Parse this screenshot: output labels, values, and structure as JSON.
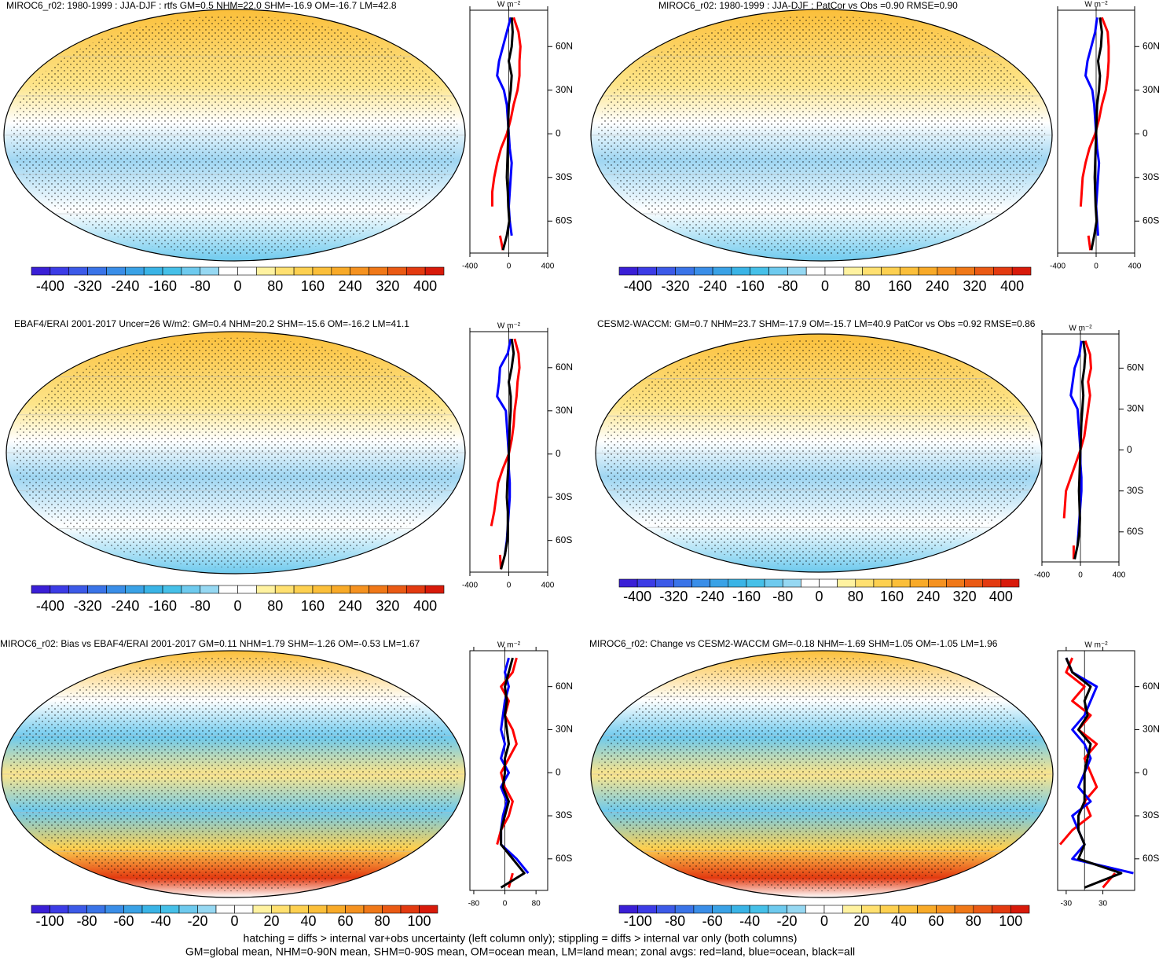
{
  "chart_data": [
    {
      "type": "map",
      "title": "MIROC6_r02: 1980-1999 : JJA-DJF : rtfs GM=0.5 NHM=22.0 SHM=-16.9 OM=-16.7 LM=42.8",
      "colorbar": {
        "lim": [
          -440,
          440
        ],
        "ticks": [
          -400,
          -320,
          -240,
          -160,
          -80,
          0,
          80,
          160,
          240,
          320,
          400
        ]
      },
      "zonal": {
        "type": "line",
        "unit_label": "W m⁻²",
        "lat": [
          -80,
          -70,
          -60,
          -50,
          -40,
          -30,
          -20,
          -10,
          0,
          10,
          20,
          30,
          40,
          50,
          60,
          70,
          80
        ],
        "latlim": [
          -82,
          85
        ],
        "latticks": [
          {
            "value": 60,
            "label": "60N"
          },
          {
            "value": 30,
            "label": "30N"
          },
          0,
          {
            "value": -30,
            "label": "30S"
          },
          {
            "value": -60,
            "label": "60S"
          }
        ],
        "vlim": [
          -400,
          400
        ],
        "vticks": [
          -400,
          0,
          400
        ],
        "series": [
          {
            "name": "land",
            "color": "#ff0000",
            "values": [
              -60,
              -90,
              null,
              -170,
              -170,
              -150,
              -120,
              -80,
              -20,
              20,
              50,
              90,
              110,
              110,
              120,
              100,
              50
            ]
          },
          {
            "name": "ocean",
            "color": "#0000ff",
            "values": [
              null,
              30,
              10,
              0,
              10,
              20,
              30,
              10,
              0,
              -10,
              -20,
              -50,
              -120,
              -100,
              -60,
              -20,
              20
            ]
          },
          {
            "name": "all",
            "color": "#000000",
            "values": [
              -60,
              -20,
              5,
              -5,
              -10,
              -20,
              -15,
              -10,
              -5,
              -5,
              0,
              20,
              30,
              0,
              30,
              40,
              30
            ]
          }
        ]
      }
    },
    {
      "type": "map",
      "title": "MIROC6_r02: 1980-1999 : JJA-DJF : PatCor vs Obs =0.90 RMSE=0.90",
      "colorbar": {
        "lim": [
          -440,
          440
        ],
        "ticks": [
          -400,
          -320,
          -240,
          -160,
          -80,
          0,
          80,
          160,
          240,
          320,
          400
        ]
      },
      "zonal": {
        "type": "line",
        "unit_label": "W m⁻²",
        "lat": [
          -80,
          -70,
          -60,
          -50,
          -40,
          -30,
          -20,
          -10,
          0,
          10,
          20,
          30,
          40,
          50,
          60,
          70,
          80
        ],
        "latlim": [
          -82,
          85
        ],
        "latticks": [
          {
            "value": 60,
            "label": "60N"
          },
          {
            "value": 30,
            "label": "30N"
          },
          0,
          {
            "value": -30,
            "label": "30S"
          },
          {
            "value": -60,
            "label": "60S"
          }
        ],
        "vlim": [
          -400,
          400
        ],
        "vticks": [
          -400,
          0,
          400
        ],
        "series": [
          {
            "name": "land",
            "color": "#ff0000",
            "values": [
              -60,
              -80,
              null,
              -160,
              -150,
              -140,
              -110,
              -70,
              -10,
              30,
              60,
              100,
              120,
              130,
              130,
              120,
              60
            ]
          },
          {
            "name": "ocean",
            "color": "#0000ff",
            "values": [
              null,
              20,
              10,
              0,
              10,
              20,
              30,
              10,
              0,
              -10,
              -20,
              -40,
              -110,
              -90,
              -50,
              -10,
              10
            ]
          },
          {
            "name": "all",
            "color": "#000000",
            "values": [
              -50,
              -20,
              5,
              -5,
              -10,
              -15,
              -10,
              -5,
              0,
              5,
              10,
              30,
              40,
              20,
              50,
              60,
              40
            ]
          }
        ]
      }
    },
    {
      "type": "map",
      "title": "EBAF4/ERAI 2001-2017 Uncer=26 W/m2: GM=0.4 NHM=20.2 SHM=-15.6 OM=-16.2 LM=41.1",
      "colorbar": {
        "lim": [
          -440,
          440
        ],
        "ticks": [
          -400,
          -320,
          -240,
          -160,
          -80,
          0,
          80,
          160,
          240,
          320,
          400
        ]
      },
      "zonal": {
        "type": "line",
        "unit_label": "W m⁻²",
        "lat": [
          -80,
          -70,
          -60,
          -50,
          -40,
          -30,
          -20,
          -10,
          0,
          10,
          20,
          30,
          40,
          50,
          60,
          70,
          80
        ],
        "latlim": [
          -82,
          85
        ],
        "latticks": [
          {
            "value": 60,
            "label": "60N"
          },
          {
            "value": 30,
            "label": "30N"
          },
          0,
          {
            "value": -30,
            "label": "30S"
          },
          {
            "value": -60,
            "label": "60S"
          }
        ],
        "vlim": [
          -400,
          400
        ],
        "vticks": [
          -400,
          0,
          400
        ],
        "series": [
          {
            "name": "land",
            "color": "#ff0000",
            "values": [
              -80,
              -90,
              null,
              -180,
              -150,
              -130,
              -110,
              -60,
              0,
              30,
              50,
              60,
              80,
              90,
              110,
              100,
              60
            ]
          },
          {
            "name": "ocean",
            "color": "#0000ff",
            "values": [
              null,
              -40,
              -20,
              -10,
              0,
              10,
              10,
              0,
              0,
              -10,
              -20,
              -30,
              -120,
              -100,
              -90,
              -10,
              20
            ]
          },
          {
            "name": "all",
            "color": "#000000",
            "values": [
              -80,
              -40,
              -15,
              -10,
              -10,
              -20,
              -15,
              -5,
              0,
              5,
              10,
              20,
              20,
              0,
              30,
              50,
              30
            ]
          }
        ]
      }
    },
    {
      "type": "map",
      "title": "CESM2-WACCM: GM=0.7 NHM=23.7 SHM=-17.9 OM=-15.7 LM=40.9 PatCor vs Obs =0.92 RMSE=0.86",
      "colorbar": {
        "lim": [
          -440,
          440
        ],
        "ticks": [
          -400,
          -320,
          -240,
          -160,
          -80,
          0,
          80,
          160,
          240,
          320,
          400
        ]
      },
      "zonal": {
        "type": "line",
        "unit_label": "W m⁻²",
        "lat": [
          -80,
          -70,
          -60,
          -50,
          -40,
          -30,
          -20,
          -10,
          0,
          10,
          20,
          30,
          40,
          50,
          60,
          70,
          80
        ],
        "latlim": [
          -82,
          85
        ],
        "latticks": [
          {
            "value": 60,
            "label": "60N"
          },
          {
            "value": 30,
            "label": "30N"
          },
          0,
          {
            "value": -30,
            "label": "30S"
          },
          {
            "value": -60,
            "label": "60S"
          }
        ],
        "vlim": [
          -400,
          400
        ],
        "vticks": [
          -400,
          0,
          400
        ],
        "series": [
          {
            "name": "land",
            "color": "#ff0000",
            "values": [
              -70,
              -70,
              null,
              -170,
              -160,
              -150,
              -100,
              -50,
              0,
              40,
              60,
              80,
              100,
              80,
              110,
              100,
              50
            ]
          },
          {
            "name": "ocean",
            "color": "#0000ff",
            "values": [
              null,
              -30,
              -20,
              -10,
              0,
              10,
              10,
              0,
              0,
              -10,
              -20,
              -30,
              -100,
              -80,
              -60,
              -10,
              10
            ]
          },
          {
            "name": "all",
            "color": "#000000",
            "values": [
              -60,
              -30,
              -10,
              -5,
              -10,
              -15,
              -10,
              -5,
              0,
              5,
              10,
              20,
              30,
              20,
              40,
              50,
              30
            ]
          }
        ]
      }
    },
    {
      "type": "map",
      "title": "MIROC6_r02: Bias vs EBAF4/ERAI 2001-2017 GM=0.11 NHM=1.79 SHM=-1.26 OM=-0.53 LM=1.67",
      "colorbar": {
        "lim": [
          -110,
          110
        ],
        "ticks": [
          -100,
          -80,
          -60,
          -40,
          -20,
          0,
          20,
          40,
          60,
          80,
          100
        ]
      },
      "zonal": {
        "type": "line",
        "unit_label": "W m⁻²",
        "lat": [
          -80,
          -70,
          -60,
          -50,
          -40,
          -30,
          -20,
          -10,
          0,
          10,
          20,
          30,
          40,
          50,
          60,
          70,
          80
        ],
        "latlim": [
          -82,
          85
        ],
        "latticks": [
          {
            "value": 60,
            "label": "60N"
          },
          {
            "value": 30,
            "label": "30N"
          },
          0,
          {
            "value": -30,
            "label": "30S"
          },
          {
            "value": -60,
            "label": "60S"
          }
        ],
        "vlim": [
          -90,
          110
        ],
        "vticks": [
          -80,
          0,
          80
        ],
        "series": [
          {
            "name": "land",
            "color": "#ff0000",
            "values": [
              10,
              20,
              null,
              -20,
              -10,
              10,
              20,
              0,
              -10,
              10,
              30,
              20,
              0,
              10,
              -10,
              20,
              30
            ]
          },
          {
            "name": "ocean",
            "color": "#0000ff",
            "values": [
              null,
              60,
              30,
              -10,
              -10,
              -5,
              5,
              -10,
              10,
              -10,
              0,
              -10,
              -5,
              0,
              10,
              0,
              10
            ]
          },
          {
            "name": "all",
            "color": "#000000",
            "values": [
              -10,
              50,
              20,
              -10,
              -10,
              0,
              10,
              -5,
              0,
              0,
              10,
              5,
              0,
              5,
              0,
              10,
              20
            ]
          }
        ]
      }
    },
    {
      "type": "map",
      "title": "MIROC6_r02: Change vs CESM2-WACCM GM=-0.18 NHM=-1.69 SHM=1.05 OM=-1.05 LM=1.96",
      "colorbar": {
        "lim": [
          -110,
          110
        ],
        "ticks": [
          -100,
          -80,
          -60,
          -40,
          -20,
          0,
          20,
          40,
          60,
          80,
          100
        ]
      },
      "zonal": {
        "type": "line",
        "unit_label": "W m⁻²",
        "lat": [
          -80,
          -70,
          -60,
          -50,
          -40,
          -30,
          -20,
          -10,
          0,
          10,
          20,
          30,
          40,
          50,
          60,
          70,
          80
        ],
        "latlim": [
          -82,
          85
        ],
        "latticks": [
          {
            "value": 60,
            "label": "60N"
          },
          {
            "value": 30,
            "label": "30N"
          },
          0,
          {
            "value": -30,
            "label": "30S"
          },
          {
            "value": -60,
            "label": "60S"
          }
        ],
        "vlim": [
          -44,
          82
        ],
        "vticks": [
          -30,
          30
        ],
        "series": [
          {
            "name": "land",
            "color": "#ff0000",
            "values": [
              30,
              50,
              null,
              -40,
              -20,
              10,
              0,
              20,
              10,
              0,
              20,
              -10,
              10,
              -20,
              0,
              -30,
              -20
            ]
          },
          {
            "name": "ocean",
            "color": "#0000ff",
            "values": [
              null,
              80,
              -20,
              0,
              -10,
              -20,
              10,
              -10,
              0,
              10,
              0,
              -20,
              0,
              10,
              20,
              -20,
              -30
            ]
          },
          {
            "name": "all",
            "color": "#000000",
            "values": [
              0,
              60,
              -10,
              0,
              -10,
              -10,
              0,
              0,
              0,
              5,
              10,
              -10,
              5,
              0,
              10,
              -20,
              -30
            ]
          }
        ]
      }
    }
  ],
  "colorbar_colors": [
    "#3a1fd6",
    "#3c3ce6",
    "#3c5ae8",
    "#3a74e8",
    "#3a8ee8",
    "#3aa2e6",
    "#3ab4e6",
    "#46c0e8",
    "#6ecaee",
    "#96d8f2",
    "#ffffff",
    "#ffffff",
    "#fff2a0",
    "#ffe070",
    "#fdd050",
    "#fbbf3a",
    "#f8aa28",
    "#f59220",
    "#f07818",
    "#ea5a14",
    "#e33a10",
    "#d81a0a"
  ],
  "footer": [
    "hatching = diffs > internal var+obs uncertainty (left column only); stippling = diffs > internal var only (both columns)",
    "GM=global mean, NHM=0-90N mean, SHM=0-90S mean, OM=ocean mean, LM=land mean; zonal avgs: red=land, blue=ocean, black=all"
  ]
}
